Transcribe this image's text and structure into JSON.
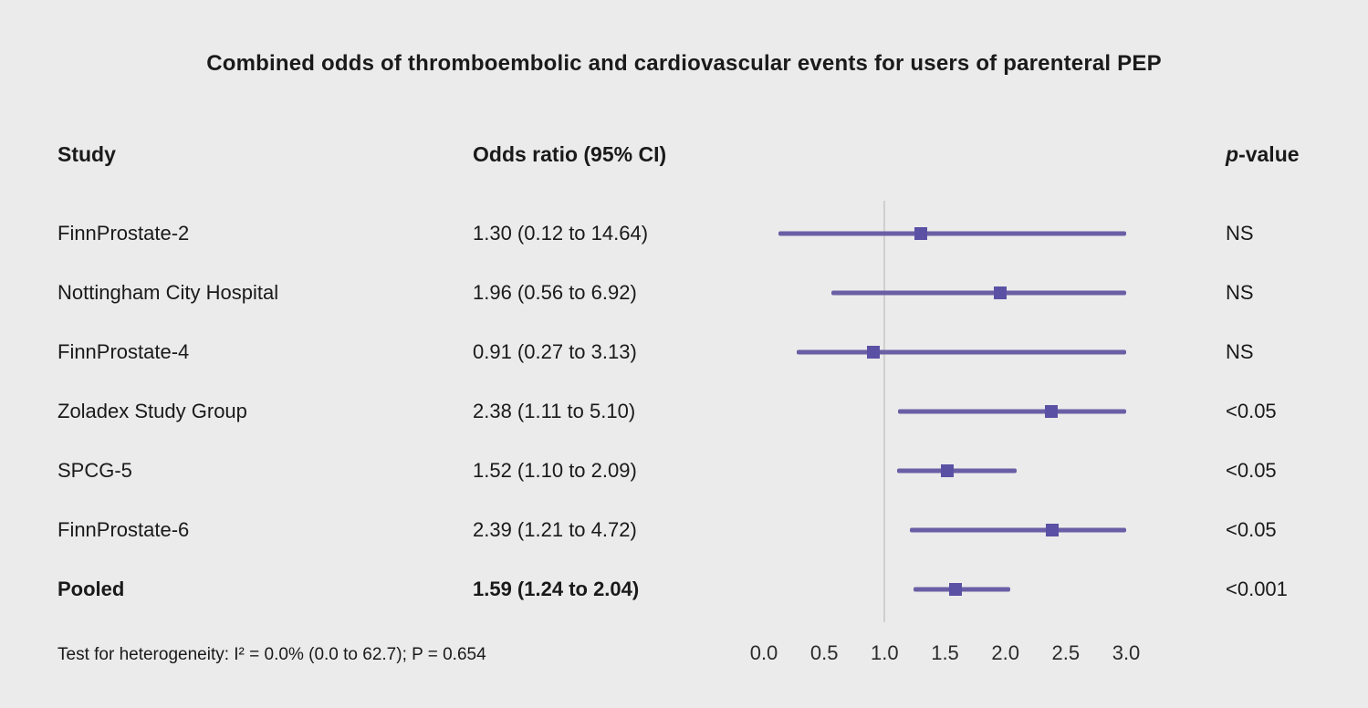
{
  "title": "Combined odds of thromboembolic and cardiovascular events for users of parenteral PEP",
  "header": {
    "study": "Study",
    "odds_ratio": "Odds ratio (95% CI)",
    "p_italic": "p",
    "p_rest": "-value"
  },
  "footnote": "Test for heterogeneity: I² = 0.0% (0.0 to 62.7); P = 0.654",
  "chart_data": {
    "type": "forest",
    "title": "Combined odds of thromboembolic and cardiovascular events for users of parenteral PEP",
    "axis": {
      "ticks": [
        "0.0",
        "0.5",
        "1.0",
        "1.5",
        "2.0",
        "2.5",
        "3.0"
      ],
      "tick_values": [
        0,
        0.5,
        1,
        1.5,
        2,
        2.5,
        3
      ],
      "xlim": [
        0,
        3
      ],
      "ref_line": 1.0
    },
    "rows": [
      {
        "study": "FinnProstate-2",
        "or_text": "1.30 (0.12 to 14.64)",
        "estimate": 1.3,
        "ci_low": 0.12,
        "ci_high": 14.64,
        "p_value": "NS",
        "bold": false
      },
      {
        "study": "Nottingham City Hospital",
        "or_text": "1.96 (0.56 to 6.92)",
        "estimate": 1.96,
        "ci_low": 0.56,
        "ci_high": 6.92,
        "p_value": "NS",
        "bold": false
      },
      {
        "study": "FinnProstate-4",
        "or_text": "0.91 (0.27 to 3.13)",
        "estimate": 0.91,
        "ci_low": 0.27,
        "ci_high": 3.13,
        "p_value": "NS",
        "bold": false
      },
      {
        "study": "Zoladex Study Group",
        "or_text": "2.38 (1.11 to 5.10)",
        "estimate": 2.38,
        "ci_low": 1.11,
        "ci_high": 5.1,
        "p_value": "<0.05",
        "bold": false
      },
      {
        "study": "SPCG-5",
        "or_text": "1.52 (1.10 to 2.09)",
        "estimate": 1.52,
        "ci_low": 1.1,
        "ci_high": 2.09,
        "p_value": "<0.05",
        "bold": false
      },
      {
        "study": "FinnProstate-6",
        "or_text": "2.39 (1.21 to 4.72)",
        "estimate": 2.39,
        "ci_low": 1.21,
        "ci_high": 4.72,
        "p_value": "<0.05",
        "bold": false
      },
      {
        "study": "Pooled",
        "or_text": "1.59 (1.24 to 2.04)",
        "estimate": 1.59,
        "ci_low": 1.24,
        "ci_high": 2.04,
        "p_value": "<0.001",
        "bold": true
      }
    ],
    "colors": {
      "background": "#ebebeb",
      "line": "#6a5fa5",
      "marker": "#5a51a5",
      "ref_line": "#cfcfcf",
      "text": "#1a1a1a"
    }
  }
}
